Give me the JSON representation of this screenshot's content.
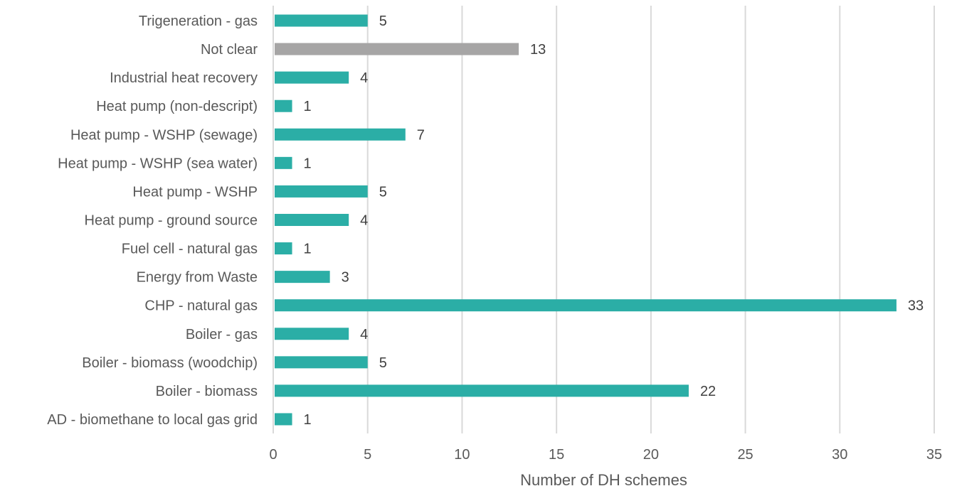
{
  "chart_data": {
    "type": "bar",
    "orientation": "horizontal",
    "title": "",
    "xlabel": "Number of DH schemes",
    "ylabel": "",
    "xlim": [
      0,
      35
    ],
    "x_ticks": [
      0,
      5,
      10,
      15,
      20,
      25,
      30,
      35
    ],
    "grid": "vertical",
    "legend": "none",
    "categories": [
      "Trigeneration - gas",
      "Not clear",
      "Industrial heat recovery",
      "Heat pump (non-descript)",
      "Heat pump - WSHP (sewage)",
      "Heat pump - WSHP (sea water)",
      "Heat pump - WSHP ",
      "Heat pump - ground source",
      "Fuel cell - natural gas",
      "Energy from Waste",
      "CHP - natural gas",
      "Boiler - gas",
      "Boiler - biomass (woodchip)",
      "Boiler - biomass",
      "AD - biomethane to local gas grid"
    ],
    "values": [
      5,
      13,
      4,
      1,
      7,
      1,
      5,
      4,
      1,
      3,
      33,
      4,
      5,
      22,
      1
    ],
    "bar_colors": [
      "#2BAEA6",
      "#A6A5A5",
      "#2BAEA6",
      "#2BAEA6",
      "#2BAEA6",
      "#2BAEA6",
      "#2BAEA6",
      "#2BAEA6",
      "#2BAEA6",
      "#2BAEA6",
      "#2BAEA6",
      "#2BAEA6",
      "#2BAEA6",
      "#2BAEA6",
      "#2BAEA6"
    ]
  },
  "colors": {
    "primary_bar": "#2BAEA6",
    "unclear_bar": "#A6A5A5",
    "gridline": "#D9D9D9",
    "axis_line": "#D9D9D9",
    "text": "#595959"
  }
}
